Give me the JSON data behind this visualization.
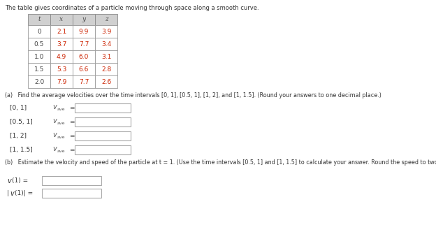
{
  "title_text": "The table gives coordinates of a particle moving through space along a smooth curve.",
  "table_headers": [
    "t",
    "x",
    "y",
    "z"
  ],
  "table_data": [
    [
      "0",
      "2.1",
      "9.9",
      "3.9"
    ],
    [
      "0.5",
      "3.7",
      "7.7",
      "3.4"
    ],
    [
      "1.0",
      "4.9",
      "6.0",
      "3.1"
    ],
    [
      "1.5",
      "5.3",
      "6.6",
      "2.8"
    ],
    [
      "2.0",
      "7.9",
      "7.7",
      "2.6"
    ]
  ],
  "header_bg": "#d0d0d0",
  "row_bg": "#ffffff",
  "table_text_color_header": "#444444",
  "table_text_color_t": "#444444",
  "table_text_color_xyz": "#cc2200",
  "part_a_text": "(a)   Find the average velocities over the time intervals [0, 1], [0.5, 1], [1, 2], and [1, 1.5]. (Round your answers to one decimal place.)",
  "intervals": [
    "[0, 1]",
    "[0.5, 1]",
    "[1, 2]",
    "[1, 1.5]"
  ],
  "part_b_text": "(b)   Estimate the velocity and speed of the particle at t = 1. (Use the time intervals [0.5, 1] and [1, 1.5] to calculate your answer. Round the speed to two decimal places.)",
  "bg_color": "#ffffff",
  "text_color": "#333333",
  "box_edge_color": "#aaaaaa",
  "vave_color": "#555555"
}
